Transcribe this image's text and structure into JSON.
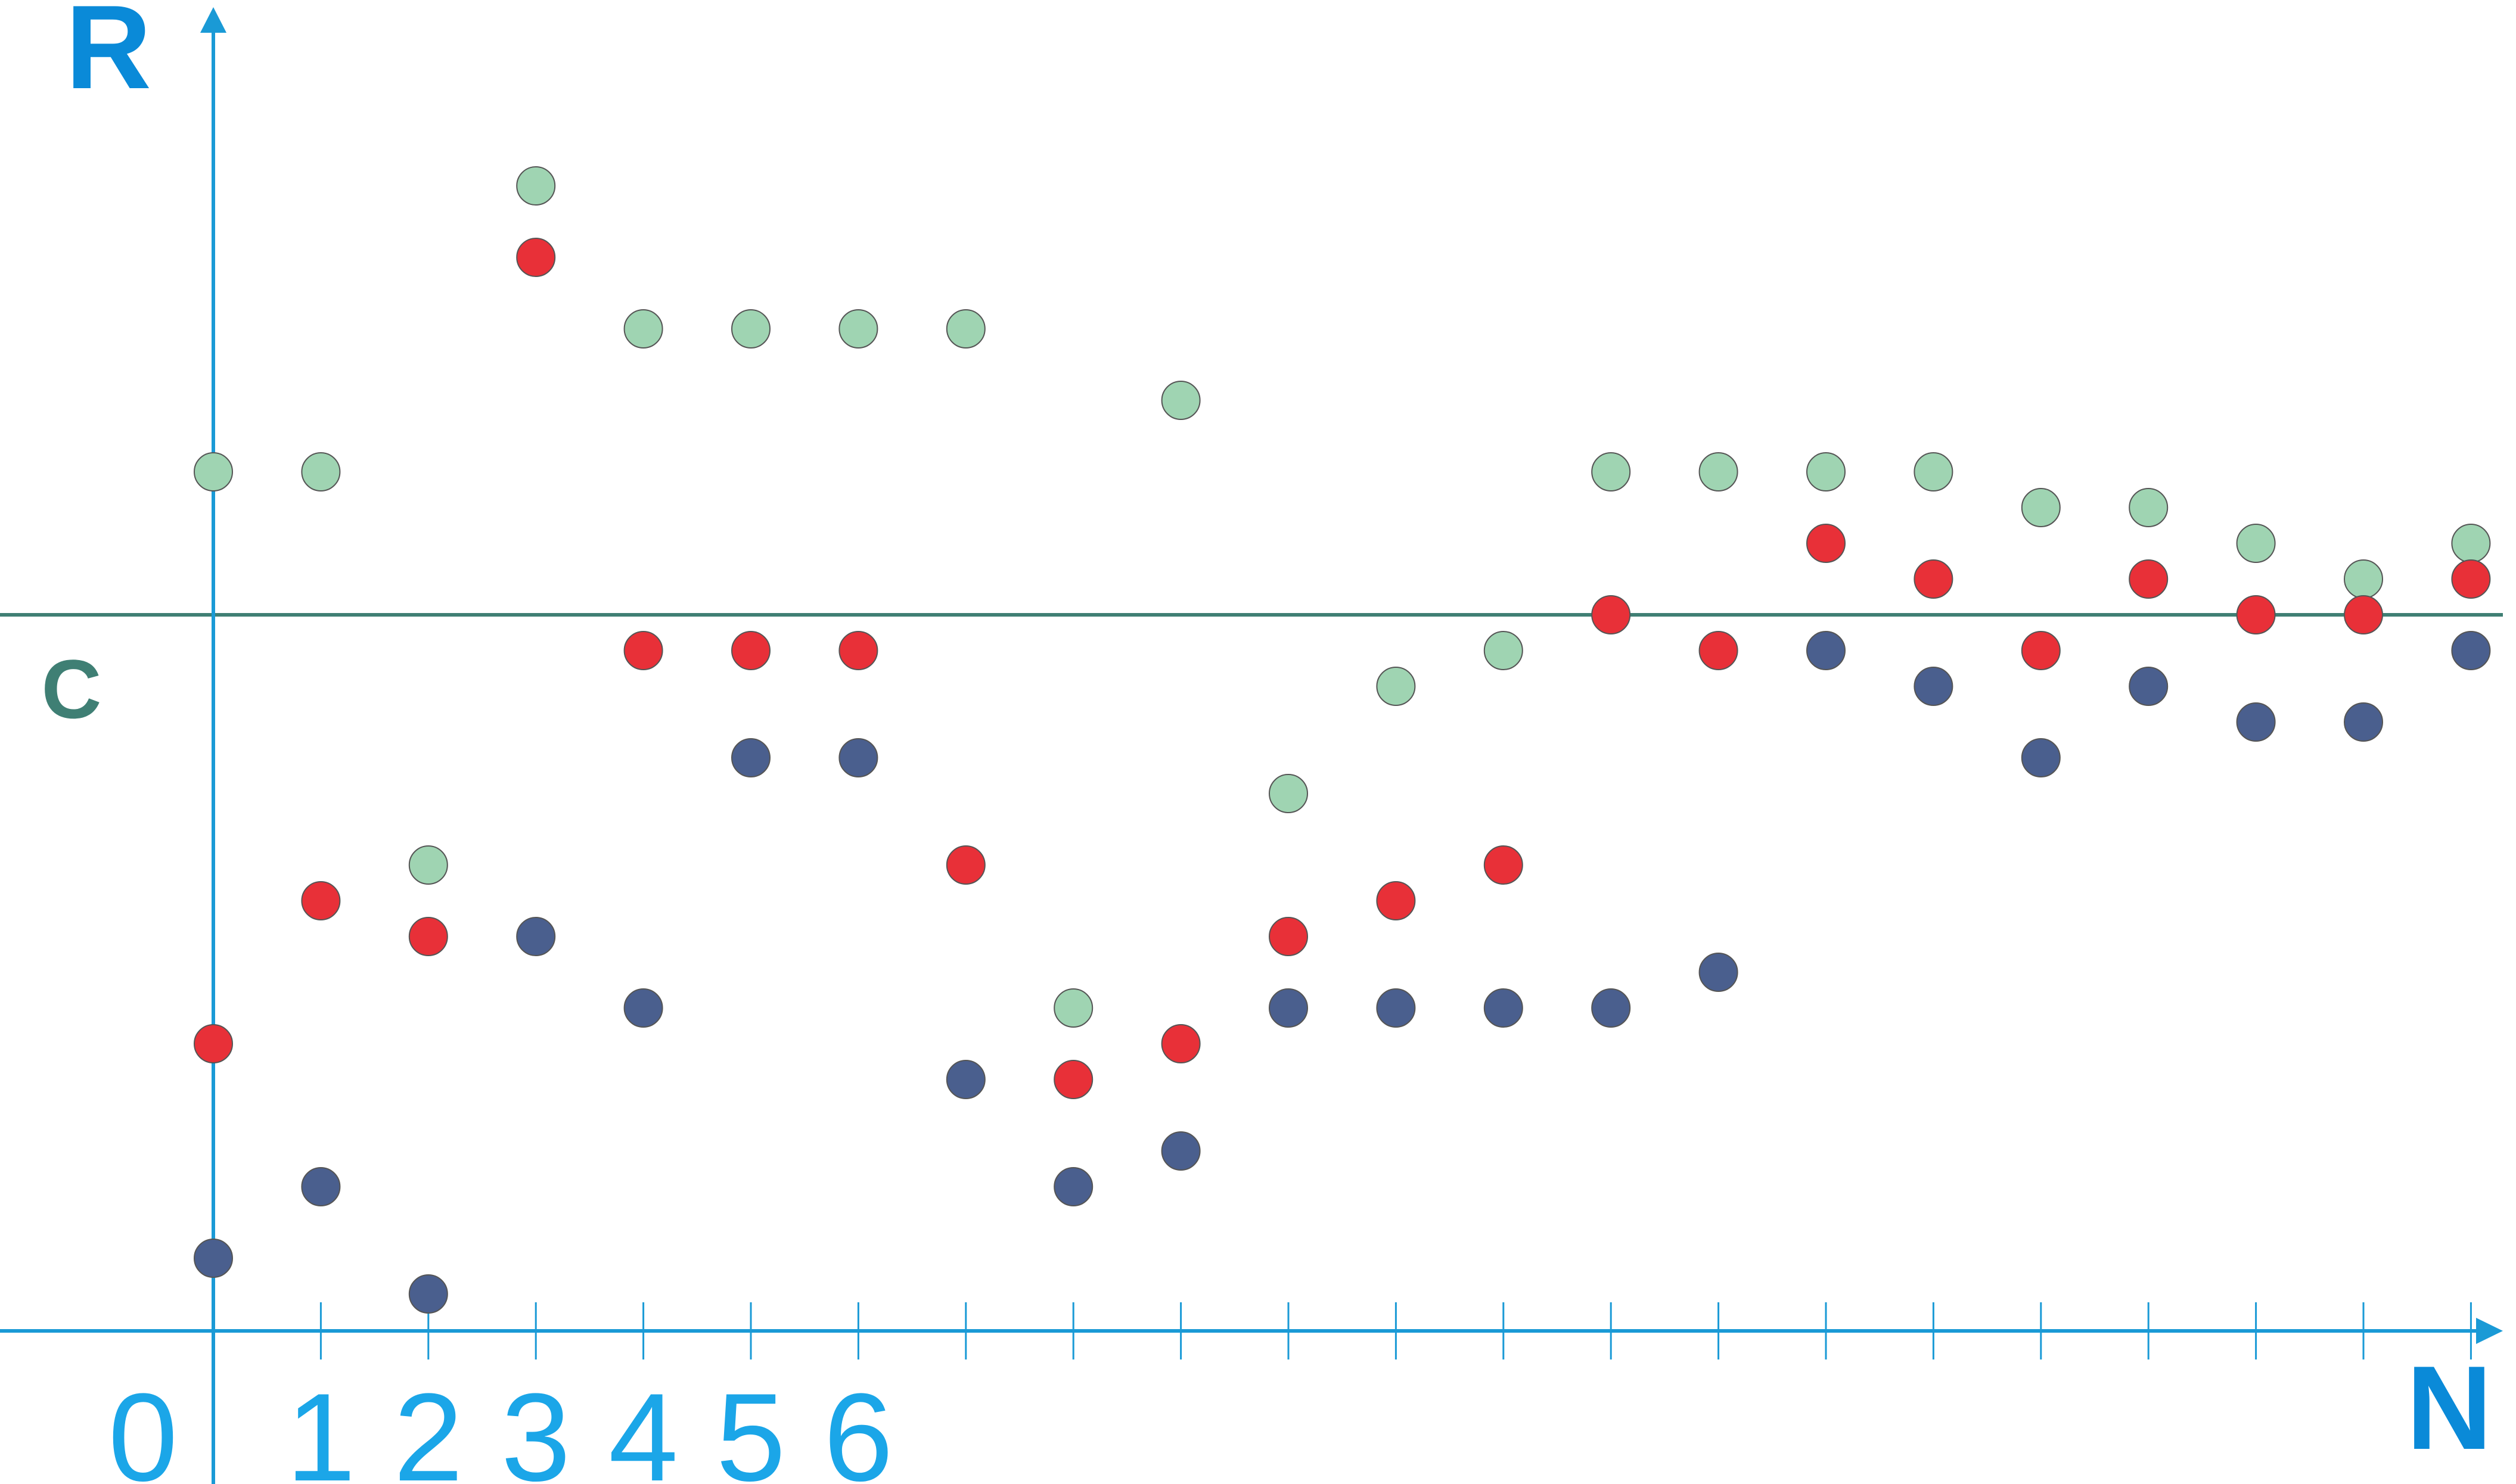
{
  "chart_data": {
    "type": "scatter",
    "x_axis_label": "N",
    "y_axis_label": "R",
    "reference_line_label": "C",
    "reference_line_value": 0,
    "x_tick_labels": [
      "0",
      "1",
      "2",
      "3",
      "4",
      "5",
      "6"
    ],
    "x_ticks_count": 21,
    "ylim": [
      -10,
      8.5
    ],
    "xlim": [
      -2,
      21.5
    ],
    "grid": false,
    "legend": "none",
    "colors": {
      "axis": "#1a9ad6",
      "reference_line": "#3f7f74",
      "green": "#9fd4b2",
      "red": "#e83038",
      "blue": "#4a5f8e",
      "marker_stroke": "#555555"
    },
    "series": [
      {
        "color_key": "green",
        "points": [
          [
            0,
            2
          ],
          [
            1,
            2
          ],
          [
            2,
            -3.5
          ],
          [
            3,
            6
          ],
          [
            4,
            4
          ],
          [
            5,
            4
          ],
          [
            6,
            4
          ],
          [
            7,
            4
          ],
          [
            8,
            -5.5
          ],
          [
            9,
            3
          ],
          [
            10,
            -2.5
          ],
          [
            11,
            -1
          ],
          [
            12,
            -0.5
          ],
          [
            13,
            2
          ],
          [
            14,
            2
          ],
          [
            15,
            2
          ],
          [
            16,
            2
          ],
          [
            17,
            1.5
          ],
          [
            18,
            1.5
          ],
          [
            19,
            1
          ],
          [
            20,
            0.5
          ],
          [
            21,
            1
          ]
        ]
      },
      {
        "color_key": "red",
        "points": [
          [
            0,
            -6
          ],
          [
            1,
            -4
          ],
          [
            2,
            -4.5
          ],
          [
            3,
            5
          ],
          [
            4,
            -0.5
          ],
          [
            5,
            -0.5
          ],
          [
            6,
            -0.5
          ],
          [
            7,
            -3.5
          ],
          [
            8,
            -6.5
          ],
          [
            9,
            -6
          ],
          [
            10,
            -4.5
          ],
          [
            11,
            -4
          ],
          [
            12,
            -3.5
          ],
          [
            13,
            0
          ],
          [
            14,
            -0.5
          ],
          [
            15,
            1
          ],
          [
            16,
            0.5
          ],
          [
            17,
            -0.5
          ],
          [
            18,
            0.5
          ],
          [
            19,
            0
          ],
          [
            20,
            0
          ],
          [
            21,
            0.5
          ]
        ]
      },
      {
        "color_key": "blue",
        "points": [
          [
            0,
            -9
          ],
          [
            1,
            -8
          ],
          [
            2,
            -9.5
          ],
          [
            3,
            -4.5
          ],
          [
            4,
            -5.5
          ],
          [
            5,
            -2
          ],
          [
            6,
            -2
          ],
          [
            7,
            -6.5
          ],
          [
            8,
            -8
          ],
          [
            9,
            -7.5
          ],
          [
            10,
            -5.5
          ],
          [
            11,
            -5.5
          ],
          [
            12,
            -5.5
          ],
          [
            13,
            -5.5
          ],
          [
            14,
            -5
          ],
          [
            15,
            -0.5
          ],
          [
            16,
            -1
          ],
          [
            17,
            -2
          ],
          [
            18,
            -1
          ],
          [
            19,
            -1.5
          ],
          [
            20,
            -1.5
          ],
          [
            21,
            -0.5
          ]
        ]
      }
    ]
  }
}
